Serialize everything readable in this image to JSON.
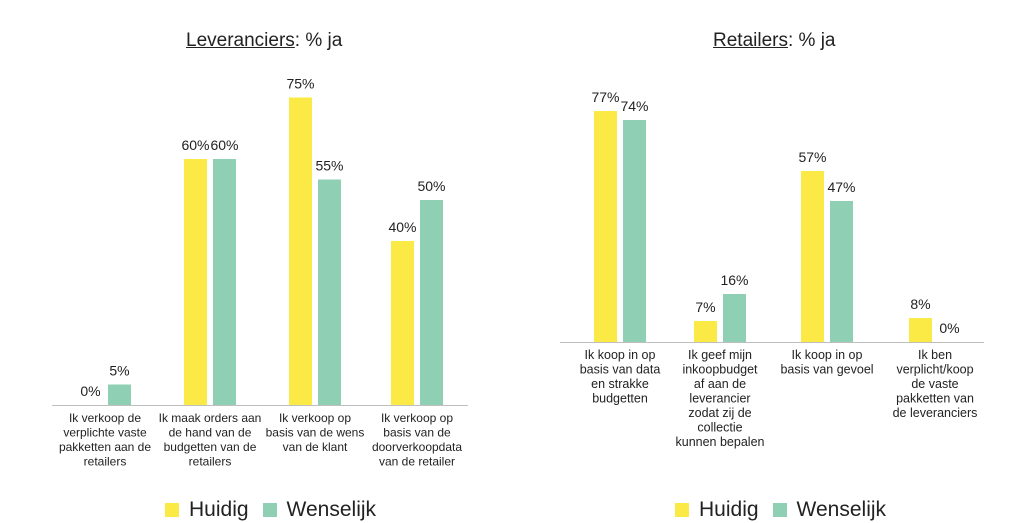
{
  "chart_data": [
    {
      "type": "bar",
      "title_underlined": "Leveranciers",
      "title_rest": ": % ja",
      "categories": [
        [
          "Ik verkoop de",
          "verplichte vaste",
          "pakketten aan de",
          "retailers"
        ],
        [
          "Ik maak orders aan",
          "de hand van de",
          "budgetten van de",
          "retailers"
        ],
        [
          "Ik verkoop op",
          "basis van de wens",
          "van de klant"
        ],
        [
          "Ik verkoop op",
          "basis van de",
          "doorverkoopdata",
          "van de retailer"
        ]
      ],
      "series": [
        {
          "name": "Huidig",
          "values": [
            0,
            60,
            75,
            40
          ],
          "labels": [
            "0%",
            "60%",
            "75%",
            "40%"
          ]
        },
        {
          "name": "Wenselijk",
          "values": [
            5,
            60,
            55,
            50
          ],
          "labels": [
            "5%",
            "60%",
            "55%",
            "50%"
          ]
        }
      ],
      "ylim": [
        0,
        100
      ],
      "grid": false,
      "legend": "bottom"
    },
    {
      "type": "bar",
      "title_underlined": "Retailers",
      "title_rest": ": % ja",
      "categories": [
        [
          "Ik koop in op",
          "basis van data",
          "en strakke",
          "budgetten"
        ],
        [
          "Ik geef mijn",
          "inkoopbudget",
          "af aan de",
          "leverancier",
          "zodat zij de",
          "collectie",
          "kunnen bepalen"
        ],
        [
          "Ik koop in op",
          "basis van gevoel"
        ],
        [
          "Ik ben",
          "verplicht/koop",
          "de vaste",
          "pakketten van",
          "de leveranciers"
        ]
      ],
      "series": [
        {
          "name": "Huidig",
          "values": [
            77,
            7,
            57,
            8
          ],
          "labels": [
            "77%",
            "7%",
            "57%",
            "8%"
          ]
        },
        {
          "name": "Wenselijk",
          "values": [
            74,
            16,
            47,
            0
          ],
          "labels": [
            "74%",
            "16%",
            "47%",
            "0%"
          ]
        }
      ],
      "ylim": [
        0,
        100
      ],
      "grid": false,
      "legend": "bottom"
    }
  ],
  "colors": {
    "huidig": "#FBE946",
    "wenselijk": "#8FD0B5",
    "axis": "#BFBFBF",
    "text": "#222222"
  },
  "legend": {
    "huidig": "Huidig",
    "wenselijk": "Wenselijk"
  }
}
